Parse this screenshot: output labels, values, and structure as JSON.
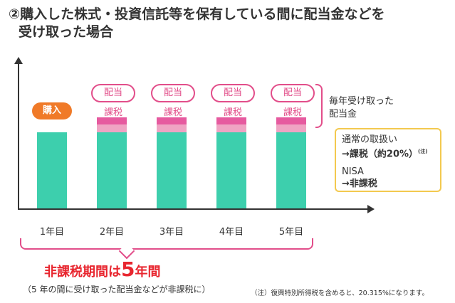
{
  "title": {
    "line1": "②購入した株式・投資信託等を保有している間に配当金などを",
    "line2": "受け取った場合"
  },
  "purchase_label": "購入",
  "dividend_label": "配当",
  "taxed_label": "課税",
  "years": [
    "1年目",
    "2年目",
    "3年目",
    "4年目",
    "5年目"
  ],
  "annual_label": {
    "line1": "毎年受け取った",
    "line2": "配当金"
  },
  "info_box": {
    "normal_label": "通常の取扱い",
    "normal_tax": "→課税（約20%）",
    "note_mark": "(注)",
    "nisa_label": "NISA",
    "nisa_tax": "→非課税"
  },
  "tax_free_period": {
    "prefix": "非課税期間は",
    "number": "5",
    "suffix": "年間",
    "sub": "（5 年の間に受け取った配当金などが非課税に）"
  },
  "footnote": "（注）復興特別所得税を含めると、20.315%になります。",
  "colors": {
    "bar": "#3dcfad",
    "dividend_dark": "#e65a9f",
    "dividend_light": "#efa3c3",
    "accent_pink": "#e24e8a",
    "orange": "#f07a28",
    "red_text": "#e8262f",
    "box_border": "#f3c94f"
  }
}
